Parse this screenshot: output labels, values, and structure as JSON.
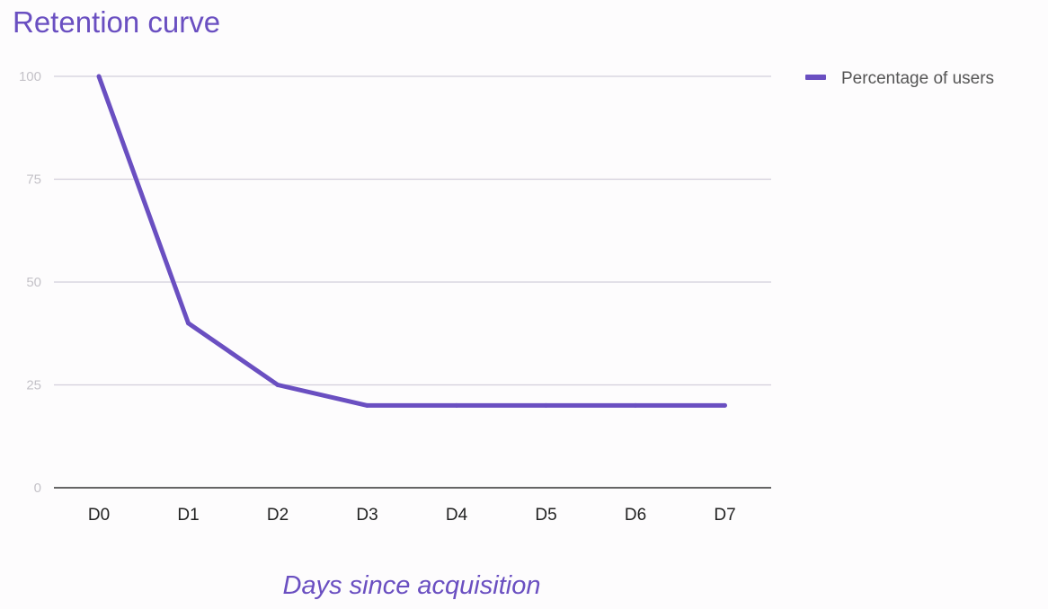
{
  "chart_data": {
    "type": "line",
    "title": "Retention curve",
    "xlabel": "Days since acquisition",
    "ylabel": "",
    "categories": [
      "D0",
      "D1",
      "D2",
      "D3",
      "D4",
      "D5",
      "D6",
      "D7"
    ],
    "yticks": [
      "0",
      "25",
      "50",
      "75",
      "100"
    ],
    "ylim": [
      0,
      100
    ],
    "grid": true,
    "legend_position": "top-right",
    "series": [
      {
        "name": "Percentage of users",
        "values": [
          100,
          40,
          25,
          20,
          20,
          20,
          20,
          20
        ],
        "color": "#6a4fc1"
      }
    ],
    "colors": {
      "accent": "#6a4fc1",
      "title": "#6a4fc1",
      "gridline": "#d3cfdb",
      "baseline": "#333333",
      "tick_text": "#c4c2c8",
      "category_text": "#222222",
      "legend_text": "#555555"
    }
  }
}
